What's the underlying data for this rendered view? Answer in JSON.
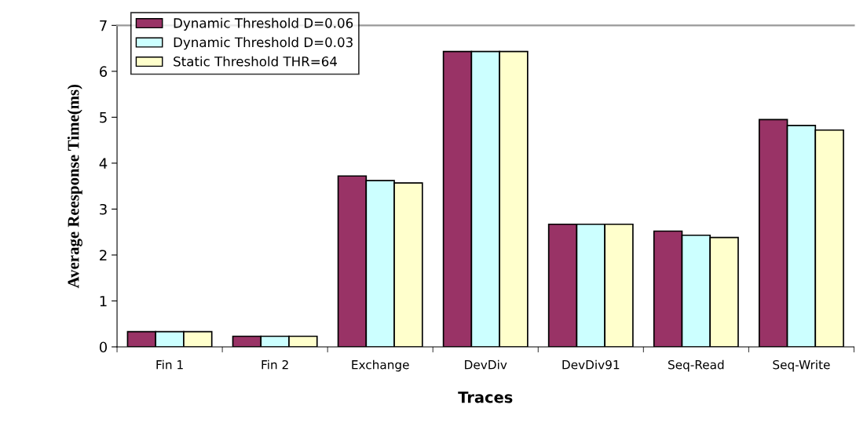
{
  "chart_data": {
    "type": "bar",
    "xlabel": "Traces",
    "ylabel": "Average Reesponse Time(ms)",
    "categories": [
      "Fin 1",
      "Fin 2",
      "Exchange",
      "DevDiv",
      "DevDiv91",
      "Seq-Read",
      "Seq-Write"
    ],
    "series": [
      {
        "name": "Dynamic Threshold D=0.06",
        "color": "#993366",
        "values": [
          0.33,
          0.23,
          3.72,
          6.43,
          2.67,
          2.52,
          4.95
        ]
      },
      {
        "name": "Dynamic Threshold D=0.03",
        "color": "#ccffff",
        "values": [
          0.33,
          0.23,
          3.62,
          6.43,
          2.67,
          2.43,
          4.82
        ]
      },
      {
        "name": "Static Threshold THR=64",
        "color": "#ffffcc",
        "values": [
          0.33,
          0.23,
          3.57,
          6.43,
          2.67,
          2.38,
          4.72
        ]
      }
    ],
    "ylim": [
      0,
      7
    ],
    "yticks": [
      0,
      1,
      2,
      3,
      4,
      5,
      6,
      7
    ],
    "grid": false,
    "legend": "top left"
  }
}
